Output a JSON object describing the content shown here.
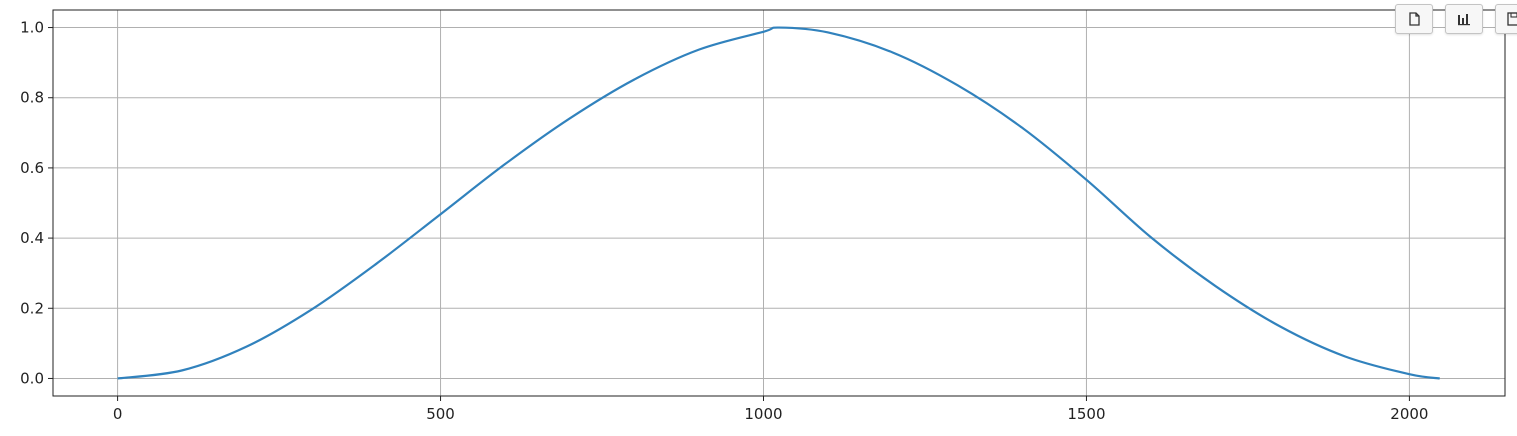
{
  "chart_data": {
    "type": "line",
    "title": "",
    "xlabel": "",
    "ylabel": "",
    "xlim": [
      -100,
      2148
    ],
    "ylim": [
      -0.05,
      1.05
    ],
    "xticks": [
      0,
      500,
      1000,
      1500,
      2000
    ],
    "yticks": [
      0.0,
      0.2,
      0.4,
      0.6,
      0.8,
      1.0
    ],
    "xtick_labels": [
      "0",
      "500",
      "1000",
      "1500",
      "2000"
    ],
    "ytick_labels": [
      "0.0",
      "0.2",
      "0.4",
      "0.6",
      "0.8",
      "1.0"
    ],
    "grid": true,
    "legend": "none",
    "series": [
      {
        "color": "#3182bd",
        "x": [
          0,
          100,
          200,
          300,
          400,
          500,
          600,
          700,
          800,
          900,
          1000,
          1024,
          1100,
          1200,
          1300,
          1400,
          1500,
          1600,
          1700,
          1800,
          1900,
          2000,
          2047
        ],
        "y": [
          0.0,
          0.023,
          0.091,
          0.196,
          0.326,
          0.468,
          0.611,
          0.741,
          0.852,
          0.937,
          0.988,
          1.0,
          0.986,
          0.929,
          0.836,
          0.715,
          0.566,
          0.402,
          0.263,
          0.148,
          0.063,
          0.012,
          0.0
        ]
      }
    ]
  },
  "toolbar": {
    "buttons": [
      {
        "icon": "copy-icon"
      },
      {
        "icon": "bar-chart-icon"
      },
      {
        "icon": "save-icon"
      }
    ]
  }
}
